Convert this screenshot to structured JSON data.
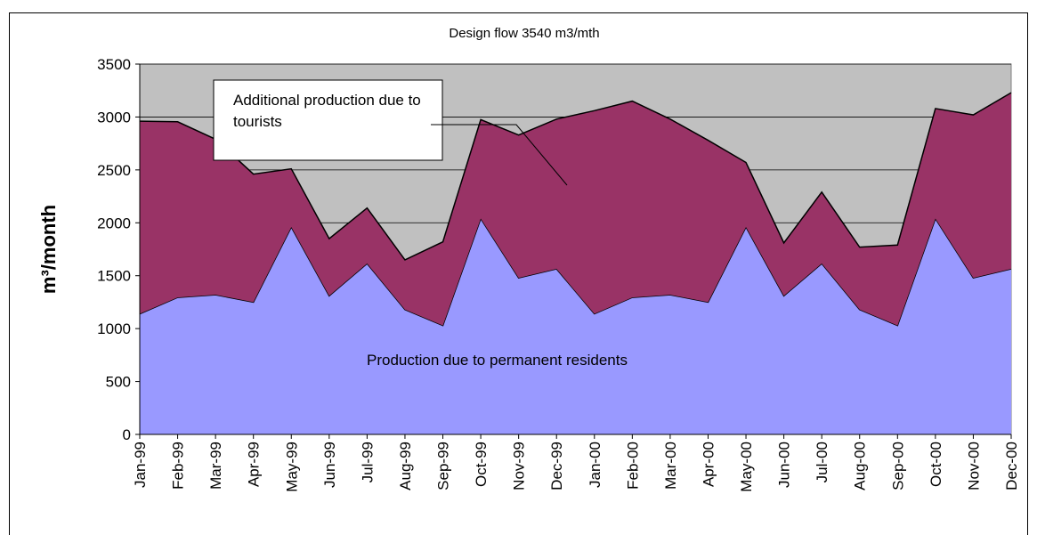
{
  "chart_data": {
    "type": "stacked-area",
    "title": "Design flow 3540 m3/mth",
    "y_label": "m³/month",
    "categories": [
      "Jan-99",
      "Feb-99",
      "Mar-99",
      "Apr-99",
      "May-99",
      "Jun-99",
      "Jul-99",
      "Aug-99",
      "Sep-99",
      "Oct-99",
      "Nov-99",
      "Dec-99",
      "Jan-00",
      "Feb-00",
      "Mar-00",
      "Apr-00",
      "May-00",
      "Jun-00",
      "Jul-00",
      "Aug-00",
      "Sep-00",
      "Oct-00",
      "Nov-00",
      "Dec-00"
    ],
    "series": [
      {
        "name": "Production due to permanent residents",
        "color": "#9999ff",
        "values": [
          1140,
          1295,
          1320,
          1250,
          1960,
          1310,
          1615,
          1180,
          1030,
          2040,
          1480,
          1565,
          1140,
          1295,
          1320,
          1250,
          1960,
          1310,
          1615,
          1180,
          1030,
          2040,
          1480,
          1565
        ]
      },
      {
        "name": "Additional production due to tourists",
        "color": "#993366",
        "values": [
          1820,
          1660,
          1470,
          1210,
          550,
          540,
          525,
          470,
          790,
          935,
          1350,
          1415,
          1920,
          1855,
          1660,
          1530,
          610,
          500,
          675,
          590,
          760,
          1040,
          1540,
          1665
        ]
      }
    ],
    "ylim": [
      0,
      3500
    ],
    "yticks": [
      0,
      500,
      1000,
      1500,
      2000,
      2500,
      3000,
      3500
    ],
    "grid": true,
    "plot_background": "#c0c0c0"
  }
}
